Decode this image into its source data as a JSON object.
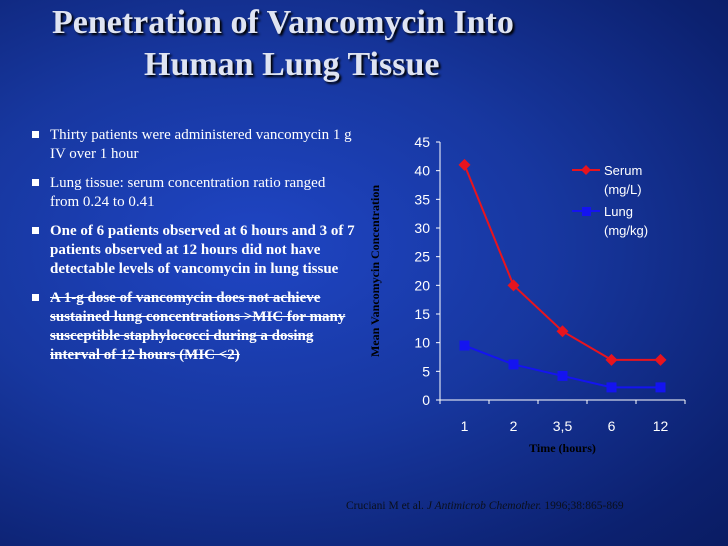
{
  "slide": {
    "title_line1": "Penetration of Vancomycin Into",
    "title_line2": "Human  Lung Tissue",
    "bullets": [
      {
        "text": "Thirty patients were administered vancomycin 1 g IV over 1 hour",
        "bold": false,
        "struck": false
      },
      {
        "text": "Lung tissue: serum concentration ratio ranged from 0.24 to 0.41",
        "bold": false,
        "struck": false
      },
      {
        "text": "One of 6 patients observed at 6 hours and 3 of 7 patients observed at 12 hours did not have detectable levels of vancomycin in lung tissue",
        "bold": true,
        "struck": false
      },
      {
        "text": "A 1-g dose of vancomycin does not achieve sustained lung concentrations >MIC for many susceptible staphylococci during a dosing interval of 12 hours (MIC <2)",
        "bold": true,
        "struck": true
      }
    ],
    "citation_authors": "Cruciani M et al.",
    "citation_journal": "J Antimicrob Chemother.",
    "citation_rest": "1996;38:865-869"
  },
  "colors": {
    "serum": "#e8141e",
    "lung": "#1414f0",
    "axis_text": "#ffffff",
    "axis_title": "#000000"
  },
  "chart_data": {
    "type": "line",
    "categories": [
      "1",
      "2",
      "3,5",
      "6",
      "12"
    ],
    "series": [
      {
        "name": "Serum (mg/L)",
        "legend_lines": [
          "Serum",
          "(mg/L)"
        ],
        "marker": "diamond",
        "values": [
          41,
          20,
          12,
          7,
          7
        ]
      },
      {
        "name": "Lung (mg/kg)",
        "legend_lines": [
          "Lung",
          "(mg/kg)"
        ],
        "marker": "square",
        "values": [
          9.5,
          6.2,
          4.2,
          2.2,
          2.2
        ]
      }
    ],
    "xlabel": "Time (hours)",
    "ylabel": "Mean Vancomycin Concentration",
    "ylim": [
      0,
      45
    ],
    "yticks": [
      0,
      5,
      10,
      15,
      20,
      25,
      30,
      35,
      40,
      45
    ],
    "grid": false,
    "legend_position": "top-right"
  }
}
